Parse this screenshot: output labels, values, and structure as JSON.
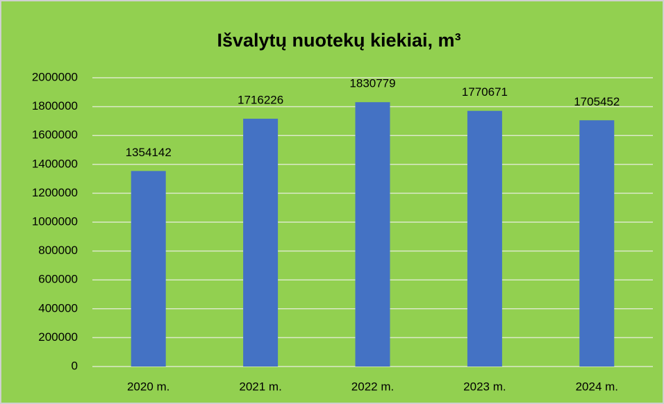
{
  "chart_data": {
    "type": "bar",
    "title": "Išvalytų nuotekų kiekiai, m³",
    "categories": [
      "2020 m.",
      "2021 m.",
      "2022 m.",
      "2023 m.",
      "2024 m."
    ],
    "values": [
      1354142,
      1716226,
      1830779,
      1770671,
      1705452
    ],
    "color": "#4472c4",
    "ylim": [
      0,
      2000000
    ],
    "yticks": [
      0,
      200000,
      400000,
      600000,
      800000,
      1000000,
      1200000,
      1400000,
      1600000,
      1800000,
      2000000
    ],
    "grid": true
  }
}
